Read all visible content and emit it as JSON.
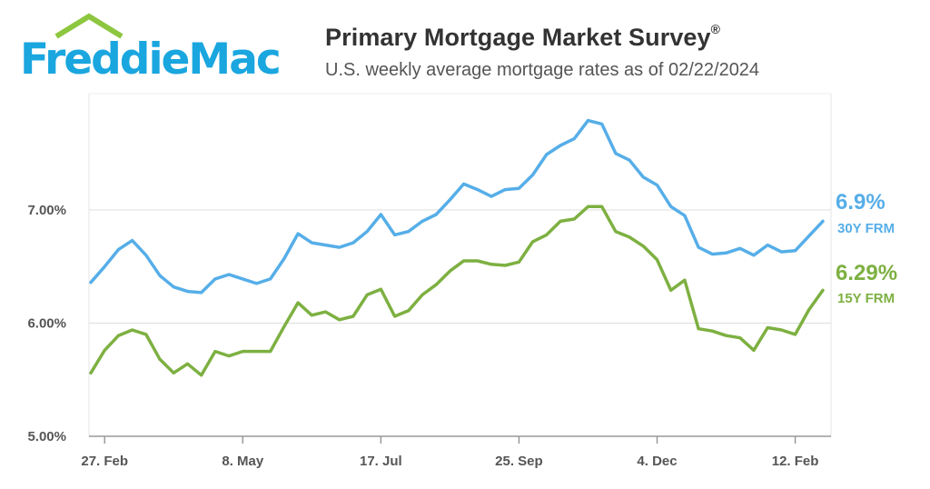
{
  "header": {
    "logo_text": "FreddieMac",
    "title": "Primary Mortgage Market Survey",
    "title_mark": "®",
    "subtitle": "U.S. weekly average mortgage rates as of 02/22/2024"
  },
  "colors": {
    "brand_blue": "#1aa6df",
    "brand_green": "#8dc63f",
    "series_30y": "#56aee8",
    "series_15y": "#7db041",
    "grid": "#dddddd"
  },
  "chart_data": {
    "type": "line",
    "title": "Primary Mortgage Market Survey",
    "subtitle": "U.S. weekly average mortgage rates as of 02/22/2024",
    "ylim": [
      5.0,
      8.0
    ],
    "yticks": [
      5.0,
      6.0,
      7.0
    ],
    "ytick_labels": [
      "5.00%",
      "6.00%",
      "7.00%"
    ],
    "xlim": [
      0,
      52
    ],
    "xtick_positions": [
      1,
      11,
      21,
      31,
      41,
      51
    ],
    "xtick_labels": [
      "27. Feb",
      "8. May",
      "17. Jul",
      "25. Sep",
      "4. Dec",
      "12. Feb"
    ],
    "grid": true,
    "series": [
      {
        "name": "30Y FRM",
        "end_value_label": "6.9%",
        "values": [
          6.36,
          6.5,
          6.65,
          6.73,
          6.6,
          6.42,
          6.32,
          6.28,
          6.27,
          6.39,
          6.43,
          6.39,
          6.35,
          6.39,
          6.57,
          6.79,
          6.71,
          6.69,
          6.67,
          6.71,
          6.81,
          6.96,
          6.78,
          6.81,
          6.9,
          6.96,
          7.09,
          7.23,
          7.18,
          7.12,
          7.18,
          7.19,
          7.31,
          7.49,
          7.57,
          7.63,
          7.79,
          7.76,
          7.5,
          7.44,
          7.29,
          7.22,
          7.03,
          6.95,
          6.67,
          6.61,
          6.62,
          6.66,
          6.6,
          6.69,
          6.63,
          6.64,
          6.77,
          6.9
        ]
      },
      {
        "name": "15Y FRM",
        "end_value_label": "6.29%",
        "values": [
          5.56,
          5.76,
          5.89,
          5.94,
          5.9,
          5.68,
          5.56,
          5.64,
          5.54,
          5.75,
          5.71,
          5.75,
          5.75,
          5.75,
          5.97,
          6.18,
          6.07,
          6.1,
          6.03,
          6.06,
          6.25,
          6.3,
          6.06,
          6.11,
          6.25,
          6.34,
          6.46,
          6.55,
          6.55,
          6.52,
          6.51,
          6.54,
          6.72,
          6.78,
          6.9,
          6.92,
          7.03,
          7.03,
          6.81,
          6.76,
          6.68,
          6.56,
          6.29,
          6.38,
          5.95,
          5.93,
          5.89,
          5.87,
          5.76,
          5.96,
          5.94,
          5.9,
          6.12,
          6.29
        ]
      }
    ]
  }
}
